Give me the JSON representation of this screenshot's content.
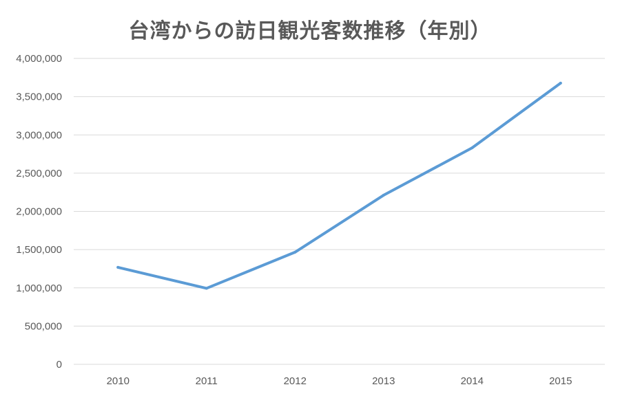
{
  "chart_data": {
    "type": "line",
    "title": "台湾からの訪日観光客数推移（年別）",
    "categories": [
      "2010",
      "2011",
      "2012",
      "2013",
      "2014",
      "2015"
    ],
    "series": [
      {
        "values": [
          1268000,
          994000,
          1466000,
          2211000,
          2830000,
          3677000
        ]
      }
    ],
    "y_ticks": [
      "0",
      "500,000",
      "1,000,000",
      "1,500,000",
      "2,000,000",
      "2,500,000",
      "3,000,000",
      "3,500,000",
      "4,000,000"
    ],
    "ylim": [
      0,
      4000000
    ],
    "grid": true,
    "line_color": "#5B9BD5",
    "grid_color": "#D9D9D9",
    "text_color": "#595959"
  }
}
